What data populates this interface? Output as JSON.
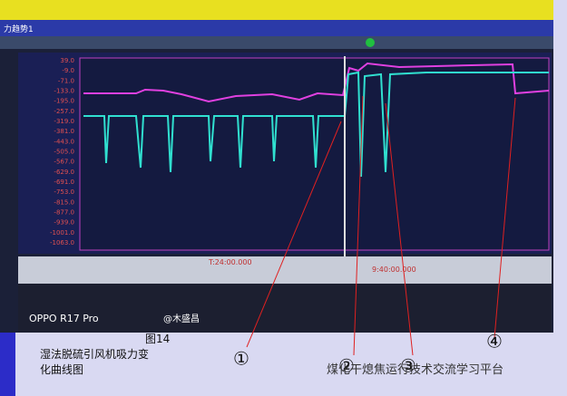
{
  "photo": {
    "window_title": "力趋势1",
    "y_axis_labels": [
      "39.0",
      "-9.0",
      "-71.0",
      "-133.0",
      "-195.0",
      "-257.0",
      "-319.0",
      "-381.0",
      "-443.0",
      "-505.0",
      "-567.0",
      "-629.0",
      "-691.0",
      "-753.0",
      "-815.0",
      "-877.0",
      "-939.0",
      "-1001.0",
      "-1063.0"
    ],
    "time_labels": [
      "T:24:00.000",
      "9:40:00.000"
    ],
    "camera_watermark": "OPPO R17 Pro",
    "camera_credit": "@木盛昌"
  },
  "caption": {
    "figure_number": "图14",
    "lines": [
      "湿法脱硫引风机吸力变",
      "化曲线图"
    ]
  },
  "markers": [
    "①",
    "②",
    "③",
    "④"
  ],
  "watermark": "煤化干熄焦运行技术交流学习平台"
}
